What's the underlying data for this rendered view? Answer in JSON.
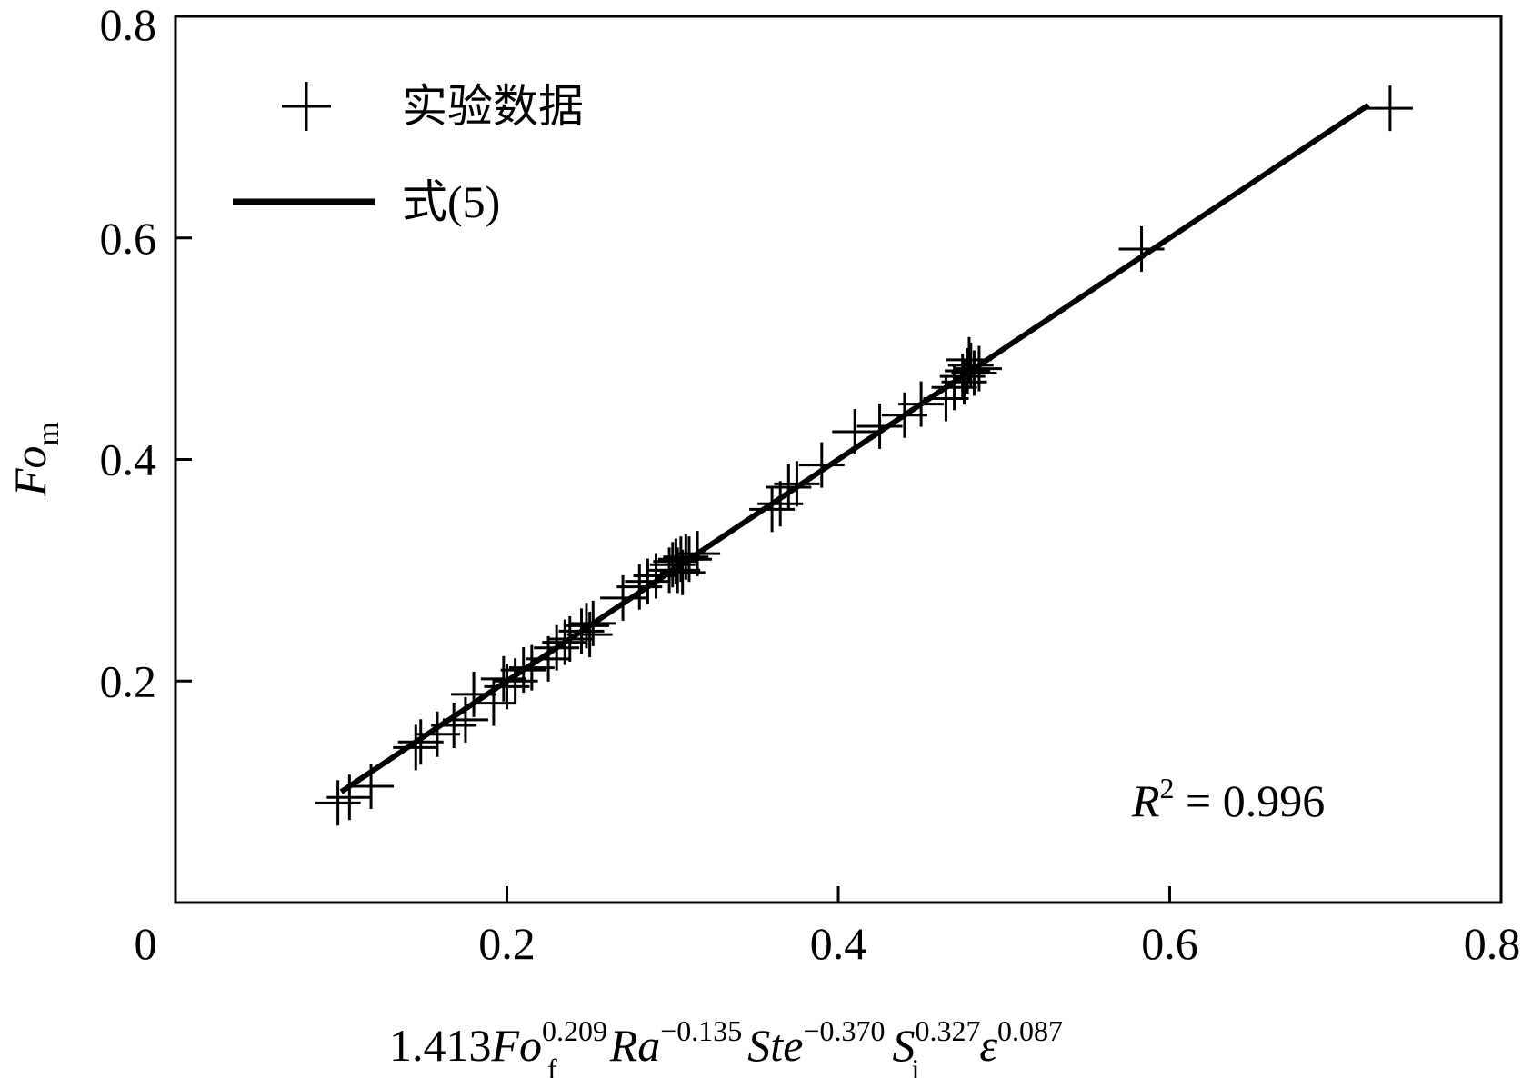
{
  "chart_data": {
    "type": "scatter",
    "xlim": [
      0,
      0.8
    ],
    "ylim": [
      0,
      0.8
    ],
    "x_ticks": [
      "0",
      "0.2",
      "0.4",
      "0.6",
      "0.8"
    ],
    "y_ticks": [
      "0.2",
      "0.4",
      "0.6",
      "0.8"
    ],
    "x_tick_values": [
      0,
      0.2,
      0.4,
      0.6,
      0.8
    ],
    "y_tick_values": [
      0.2,
      0.4,
      0.6,
      0.8
    ],
    "xlabel": {
      "coef": "1.413",
      "t1": "Fo",
      "t1_sub": "f",
      "t1_sup": "0.209",
      "t2": "Ra",
      "t2_sup": "−0.135",
      "t3": "Ste",
      "t3_sup": "−0.370",
      "t4": "S",
      "t4_sub": "i",
      "t4_sup": "0.327",
      "t5": "ε",
      "t5_sup": "0.087"
    },
    "ylabel": {
      "main": "Fo",
      "sub": "m"
    },
    "grid": false,
    "legend": {
      "position": "top-left",
      "entries": [
        {
          "label": "实验数据",
          "marker": "plus"
        },
        {
          "label": "式(5)",
          "marker": "line"
        }
      ]
    },
    "annotation": {
      "symbol": "R",
      "sup": "2",
      "text": " = 0.996"
    },
    "series": [
      {
        "label": "实验数据",
        "marker": "plus",
        "points": [
          [
            0.098,
            0.09
          ],
          [
            0.118,
            0.105
          ],
          [
            0.105,
            0.095
          ],
          [
            0.148,
            0.145
          ],
          [
            0.158,
            0.152
          ],
          [
            0.145,
            0.14
          ],
          [
            0.175,
            0.165
          ],
          [
            0.168,
            0.16
          ],
          [
            0.18,
            0.188
          ],
          [
            0.192,
            0.18
          ],
          [
            0.2,
            0.195
          ],
          [
            0.198,
            0.202
          ],
          [
            0.21,
            0.21
          ],
          [
            0.205,
            0.2
          ],
          [
            0.215,
            0.212
          ],
          [
            0.225,
            0.22
          ],
          [
            0.23,
            0.23
          ],
          [
            0.235,
            0.235
          ],
          [
            0.238,
            0.238
          ],
          [
            0.245,
            0.245
          ],
          [
            0.248,
            0.25
          ],
          [
            0.252,
            0.252
          ],
          [
            0.25,
            0.242
          ],
          [
            0.27,
            0.275
          ],
          [
            0.28,
            0.285
          ],
          [
            0.285,
            0.29
          ],
          [
            0.29,
            0.295
          ],
          [
            0.298,
            0.3
          ],
          [
            0.3,
            0.305
          ],
          [
            0.302,
            0.308
          ],
          [
            0.305,
            0.31
          ],
          [
            0.308,
            0.312
          ],
          [
            0.303,
            0.3
          ],
          [
            0.306,
            0.298
          ],
          [
            0.31,
            0.31
          ],
          [
            0.315,
            0.315
          ],
          [
            0.36,
            0.355
          ],
          [
            0.365,
            0.36
          ],
          [
            0.37,
            0.375
          ],
          [
            0.375,
            0.378
          ],
          [
            0.39,
            0.395
          ],
          [
            0.41,
            0.425
          ],
          [
            0.425,
            0.43
          ],
          [
            0.44,
            0.44
          ],
          [
            0.45,
            0.45
          ],
          [
            0.465,
            0.455
          ],
          [
            0.47,
            0.465
          ],
          [
            0.475,
            0.475
          ],
          [
            0.478,
            0.48
          ],
          [
            0.48,
            0.485
          ],
          [
            0.482,
            0.478
          ],
          [
            0.476,
            0.47
          ],
          [
            0.479,
            0.49
          ],
          [
            0.485,
            0.482
          ],
          [
            0.583,
            0.59
          ],
          [
            0.733,
            0.717
          ]
        ]
      },
      {
        "label": "式(5)",
        "marker": "line",
        "points": [
          [
            0.1,
            0.1
          ],
          [
            0.72,
            0.72
          ]
        ]
      }
    ],
    "colors": {
      "marks": "#000000",
      "background": "#ffffff"
    }
  }
}
